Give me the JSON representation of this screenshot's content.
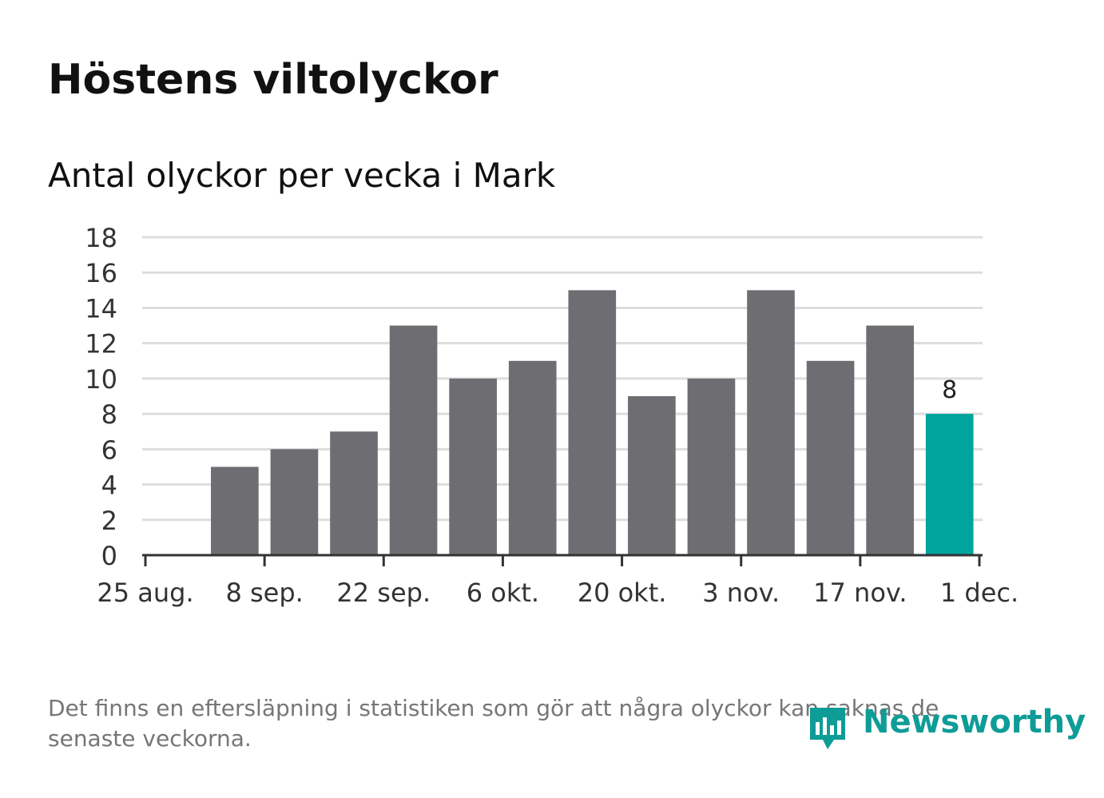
{
  "title": "Höstens viltolyckor",
  "subtitle": "Antal olyckor per vecka i Mark",
  "note_line1": "Det finns en eftersläpning i statistiken som gör att några olyckor kan saknas de",
  "note_line2": "senaste veckorna.",
  "brand": "Newsworthy",
  "colors": {
    "bar": "#6e6d72",
    "highlight": "#00a49c",
    "grid": "#dddddd",
    "axis": "#333333",
    "brand": "#0e9c97"
  },
  "chart_data": {
    "type": "bar",
    "title": "Höstens viltolyckor",
    "subtitle": "Antal olyckor per vecka i Mark",
    "x": [
      "2014-09-01",
      "2014-09-08",
      "2014-09-15",
      "2014-09-22",
      "2014-09-29",
      "2014-10-06",
      "2014-10-13",
      "2014-10-20",
      "2014-10-27",
      "2014-11-03",
      "2014-11-10",
      "2014-11-17",
      "2014-11-24"
    ],
    "values": [
      5,
      6,
      7,
      13,
      10,
      11,
      15,
      9,
      10,
      15,
      11,
      13,
      8
    ],
    "highlight_index": 12,
    "data_labels": [
      {
        "index": 12,
        "text": "8"
      }
    ],
    "ylim": [
      0,
      18
    ],
    "yticks": [
      0,
      2,
      4,
      6,
      8,
      10,
      12,
      14,
      16,
      18
    ],
    "xlim": [
      "2014-08-25",
      "2014-12-01"
    ],
    "xticks": [
      {
        "date": "2014-08-25",
        "label": "25 aug."
      },
      {
        "date": "2014-09-08",
        "label": "8 sep."
      },
      {
        "date": "2014-09-22",
        "label": "22 sep."
      },
      {
        "date": "2014-10-06",
        "label": "6 okt."
      },
      {
        "date": "2014-10-20",
        "label": "20 okt."
      },
      {
        "date": "2014-11-03",
        "label": "3 nov."
      },
      {
        "date": "2014-11-17",
        "label": "17 nov."
      },
      {
        "date": "2014-12-01",
        "label": "1 dec."
      }
    ],
    "grid": true,
    "legend": "none"
  }
}
